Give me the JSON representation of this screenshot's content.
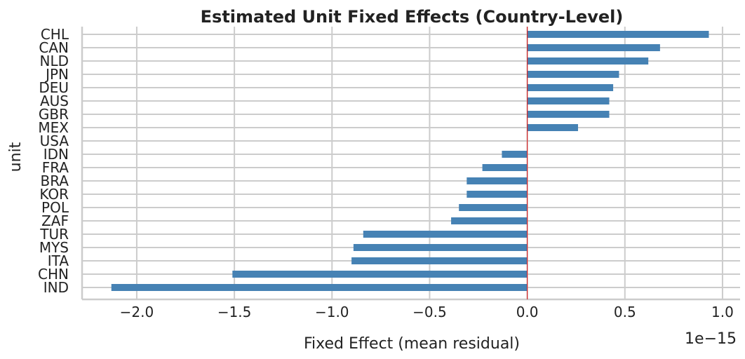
{
  "chart_data": {
    "type": "bar",
    "orientation": "horizontal",
    "title": "Estimated Unit Fixed Effects (Country-Level)",
    "xlabel": "Fixed Effect (mean residual)",
    "ylabel": "unit",
    "x_offset_text": "1e−15",
    "x_scale_exponent": -15,
    "xlim": [
      -2.28,
      1.09
    ],
    "x_ticks": [
      -2.0,
      -1.5,
      -1.0,
      -0.5,
      0.0,
      0.5,
      1.0
    ],
    "x_tick_labels": [
      "−2.0",
      "−1.5",
      "−1.0",
      "−0.5",
      "0.0",
      "0.5",
      "1.0"
    ],
    "grid": true,
    "reference_line": {
      "x": 0,
      "color": "#d62728"
    },
    "bar_color": "#4682b4",
    "categories": [
      "CHL",
      "CAN",
      "NLD",
      "JPN",
      "DEU",
      "AUS",
      "GBR",
      "MEX",
      "USA",
      "IDN",
      "FRA",
      "BRA",
      "KOR",
      "POL",
      "ZAF",
      "TUR",
      "MYS",
      "ITA",
      "CHN",
      "IND"
    ],
    "values": [
      0.93,
      0.68,
      0.62,
      0.47,
      0.44,
      0.42,
      0.42,
      0.26,
      0.0,
      -0.13,
      -0.23,
      -0.31,
      -0.31,
      -0.35,
      -0.39,
      -0.84,
      -0.89,
      -0.9,
      -1.51,
      -2.13
    ]
  }
}
